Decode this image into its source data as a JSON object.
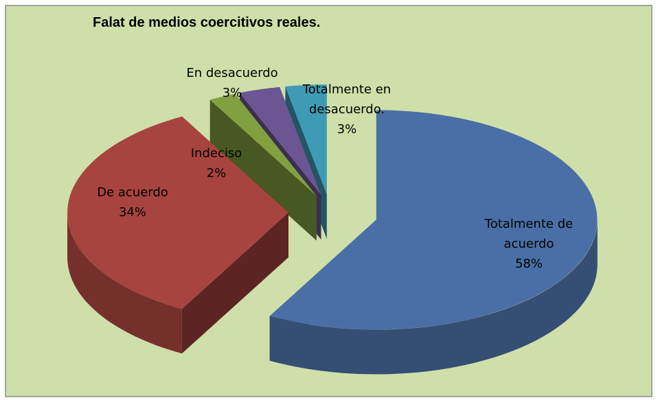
{
  "chart_data": {
    "type": "pie3d",
    "title": "Falat de medios coercitivos reales.",
    "categories": [
      "Totalmente de acuerdo",
      "De acuerdo",
      "Indeciso",
      "En desacuerdo",
      "Totalmente en desacuerdo."
    ],
    "values": [
      58,
      34,
      2,
      3,
      3
    ],
    "value_labels": [
      "58%",
      "34%",
      "2%",
      "3%",
      "3%"
    ],
    "colors": [
      "#4a6fa6",
      "#a8443f",
      "#81a040",
      "#6b5592",
      "#3f9bb5"
    ]
  }
}
